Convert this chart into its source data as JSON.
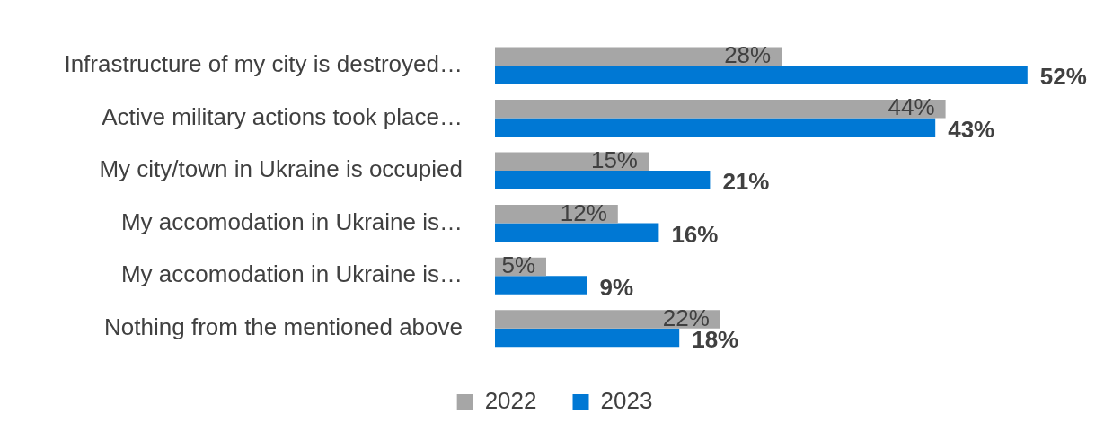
{
  "chart_data": {
    "type": "bar",
    "orientation": "horizontal",
    "categories": [
      "Infrastructure of my city is destroyed…",
      "Active military actions took place…",
      "My city/town in Ukraine is occupied",
      "My accomodation in Ukraine is…",
      "My accomodation in Ukraine is…",
      "Nothing from the mentioned above"
    ],
    "series": [
      {
        "name": "2022",
        "color": "#a6a6a6",
        "values": [
          28,
          44,
          15,
          12,
          5,
          22
        ],
        "value_labels": [
          "28%",
          "44%",
          "15%",
          "12%",
          "5%",
          "22%"
        ]
      },
      {
        "name": "2023",
        "color": "#0078d4",
        "values": [
          52,
          43,
          21,
          16,
          9,
          18
        ],
        "value_labels": [
          "52%",
          "43%",
          "21%",
          "16%",
          "9%",
          "18%"
        ]
      }
    ],
    "tick_labels": "y",
    "legend": "bottom"
  }
}
